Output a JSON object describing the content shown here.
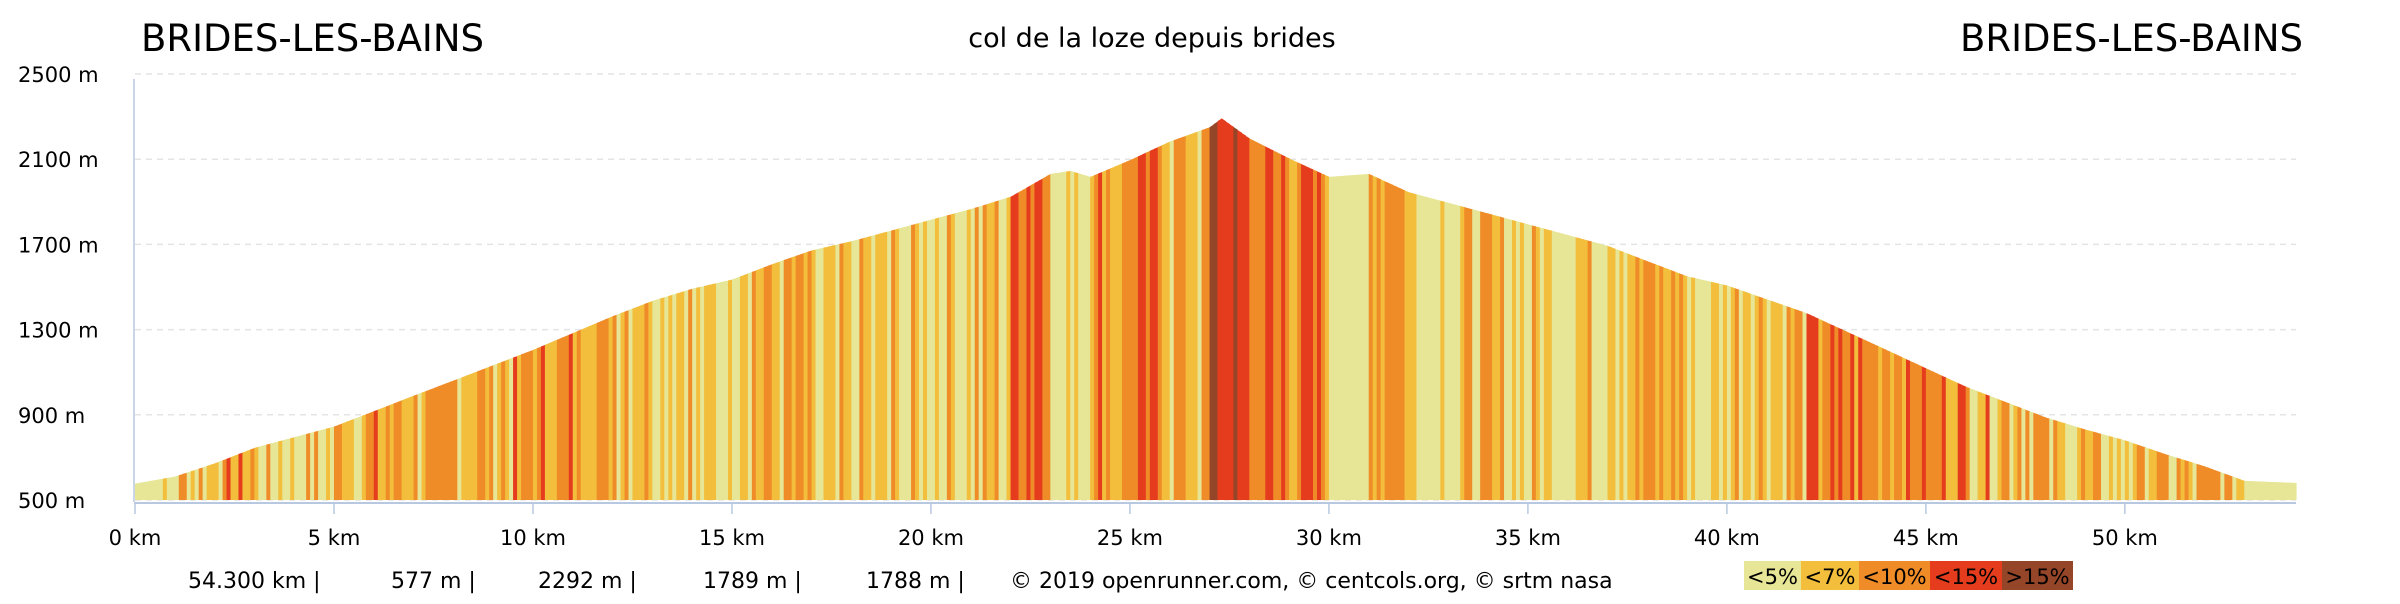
{
  "header": {
    "start_label": "BRIDES-LES-BAINS",
    "title": "col de la loze depuis brides",
    "end_label": "BRIDES-LES-BAINS"
  },
  "stats": {
    "distance": "54.300 km |",
    "min_alt": "577 m |",
    "max_alt": "2292 m |",
    "ascent": "1789 m |",
    "descent": "1788 m |",
    "credits": "© 2019 openrunner.com, © centcols.org, © srtm nasa"
  },
  "legend": [
    {
      "label": "<5%",
      "color": "#e6e696"
    },
    {
      "label": "<7%",
      "color": "#f2be3c"
    },
    {
      "label": "<10%",
      "color": "#f08c28"
    },
    {
      "label": "<15%",
      "color": "#e63c1e"
    },
    {
      "label": ">15%",
      "color": "#964628"
    }
  ],
  "chart_data": {
    "type": "area",
    "title": "col de la loze depuis brides",
    "xlabel": "",
    "ylabel": "",
    "xlim": [
      0,
      54.3
    ],
    "ylim": [
      500,
      2500
    ],
    "x_ticks": [
      0,
      5,
      10,
      15,
      20,
      25,
      30,
      35,
      40,
      45,
      50
    ],
    "x_tick_labels": [
      "0 km",
      "5 km",
      "10 km",
      "15 km",
      "20 km",
      "25 km",
      "30 km",
      "35 km",
      "40 km",
      "45 km",
      "50 km"
    ],
    "y_ticks": [
      500,
      900,
      1300,
      1700,
      2100,
      2500
    ],
    "y_tick_labels": [
      "500 m",
      "900 m",
      "1300 m",
      "1700 m",
      "2100 m",
      "2500 m"
    ],
    "grid": true,
    "color_by": "gradient",
    "distance_km": [
      0,
      1,
      2,
      3,
      4,
      5,
      6,
      7,
      8,
      9,
      10,
      11,
      12,
      13,
      14,
      15,
      16,
      17,
      18,
      19,
      20,
      21,
      22,
      23,
      23.5,
      24,
      25,
      26,
      27,
      27.3,
      28,
      29,
      30,
      31,
      32,
      33,
      34,
      35,
      36,
      37,
      38,
      39,
      40,
      41,
      42,
      43,
      44,
      45,
      46,
      47,
      48,
      49,
      50,
      51,
      52,
      53,
      54.3
    ],
    "elevation_m": [
      577,
      610,
      672,
      745,
      795,
      845,
      917,
      990,
      1061,
      1133,
      1205,
      1284,
      1363,
      1435,
      1492,
      1535,
      1607,
      1672,
      1715,
      1765,
      1816,
      1866,
      1924,
      2031,
      2045,
      2017,
      2096,
      2183,
      2250,
      2292,
      2197,
      2103,
      2017,
      2031,
      1945,
      1895,
      1845,
      1794,
      1744,
      1693,
      1621,
      1550,
      1507,
      1442,
      1377,
      1291,
      1205,
      1118,
      1032,
      960,
      888,
      831,
      780,
      716,
      658,
      590,
      580
    ]
  }
}
